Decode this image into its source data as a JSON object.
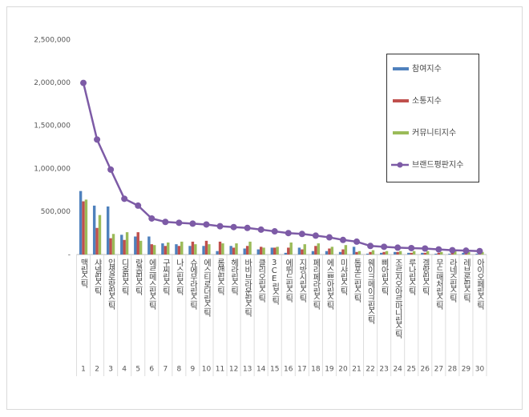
{
  "chart_data": {
    "type": "bar",
    "categories": [
      "맥립스틱",
      "샤넬립스틱",
      "입생로랑립스틱",
      "디올립스틱",
      "랑콤립스틱",
      "에르메스립스틱",
      "구찌립스틱",
      "나스립스틱",
      "슈에무라립스틱",
      "에스티로더립스틱",
      "롬앤립스틱",
      "헤라립스틱",
      "바비브라운립스틱",
      "클리오립스틱",
      "3CE립스틱",
      "에뛰드립스틱",
      "지방시립스틱",
      "페리페라립스틱",
      "에스쁘아립스틱",
      "미샤립스틱",
      "톰포드립스틱",
      "웨이크메이크립스틱",
      "삐아립스틱",
      "조르지오아르마니립스틱",
      "루나립스틱",
      "겔랑립스틱",
      "무드매처립스틱",
      "라네즈립스틱",
      "레브론립스틱",
      "아이오페립스틱"
    ],
    "ranks": [
      1,
      2,
      3,
      4,
      5,
      6,
      7,
      8,
      9,
      10,
      11,
      12,
      13,
      14,
      15,
      16,
      17,
      18,
      19,
      20,
      21,
      22,
      23,
      24,
      25,
      26,
      27,
      28,
      29,
      30
    ],
    "series": [
      {
        "name": "참여지수",
        "color": "#4f81bd",
        "values": [
          740000,
          570000,
          560000,
          230000,
          210000,
          210000,
          130000,
          120000,
          100000,
          100000,
          40000,
          100000,
          70000,
          60000,
          80000,
          20000,
          80000,
          40000,
          40000,
          30000,
          90000,
          10000,
          20000,
          30000,
          20000,
          20000,
          10000,
          10000,
          20000,
          10000
        ]
      },
      {
        "name": "소통지수",
        "color": "#c0504d",
        "values": [
          620000,
          310000,
          190000,
          170000,
          260000,
          120000,
          100000,
          100000,
          150000,
          160000,
          150000,
          80000,
          100000,
          90000,
          80000,
          80000,
          60000,
          100000,
          70000,
          60000,
          30000,
          30000,
          30000,
          30000,
          20000,
          20000,
          20000,
          20000,
          10000,
          10000
        ]
      },
      {
        "name": "커뮤니티지수",
        "color": "#9bbb59",
        "values": [
          640000,
          460000,
          240000,
          260000,
          160000,
          110000,
          140000,
          150000,
          120000,
          120000,
          130000,
          130000,
          150000,
          80000,
          90000,
          140000,
          120000,
          130000,
          90000,
          110000,
          40000,
          50000,
          40000,
          40000,
          40000,
          40000,
          30000,
          40000,
          30000,
          30000
        ]
      },
      {
        "name": "브랜드평판지수",
        "color": "#7d5ba6",
        "type": "line",
        "values": [
          2000000,
          1340000,
          990000,
          650000,
          570000,
          420000,
          380000,
          370000,
          360000,
          350000,
          330000,
          320000,
          310000,
          290000,
          270000,
          250000,
          240000,
          220000,
          200000,
          170000,
          150000,
          100000,
          90000,
          80000,
          75000,
          70000,
          60000,
          50000,
          45000,
          40000
        ]
      }
    ],
    "ylim": [
      0,
      2500000
    ],
    "yticks": [
      {
        "value": 0,
        "label": "-"
      },
      {
        "value": 500000,
        "label": "500,000"
      },
      {
        "value": 1000000,
        "label": "1,000,000"
      },
      {
        "value": 1500000,
        "label": "1,500,000"
      },
      {
        "value": 2000000,
        "label": "2,000,000"
      },
      {
        "value": 2500000,
        "label": "2,500,000"
      }
    ],
    "grid": false
  }
}
